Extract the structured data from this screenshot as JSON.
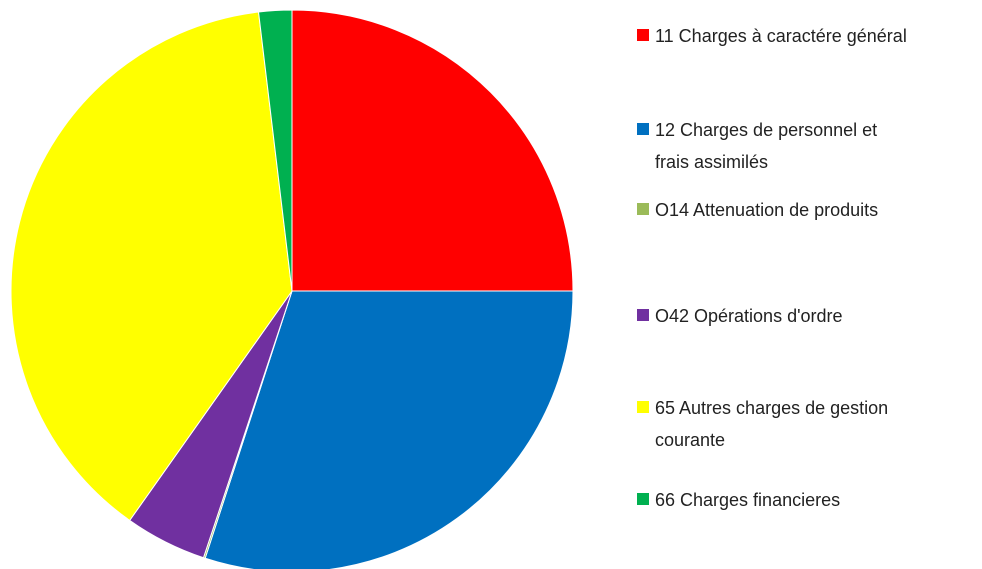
{
  "chart_data": {
    "type": "pie",
    "categories": [
      "11 Charges à caractére général",
      "12 Charges de personnel et frais assimilés",
      "O14 Attenuation de produits",
      "O42 Opérations d'ordre",
      "65 Autres charges de gestion courante",
      "66 Charges financieres"
    ],
    "values": [
      25,
      30,
      0.1,
      4.7,
      38.3,
      1.9
    ],
    "colors": [
      "#ff0000",
      "#0070c0",
      "#9bbb59",
      "#7030a0",
      "#ffff00",
      "#00b050"
    ],
    "legend": "right"
  }
}
